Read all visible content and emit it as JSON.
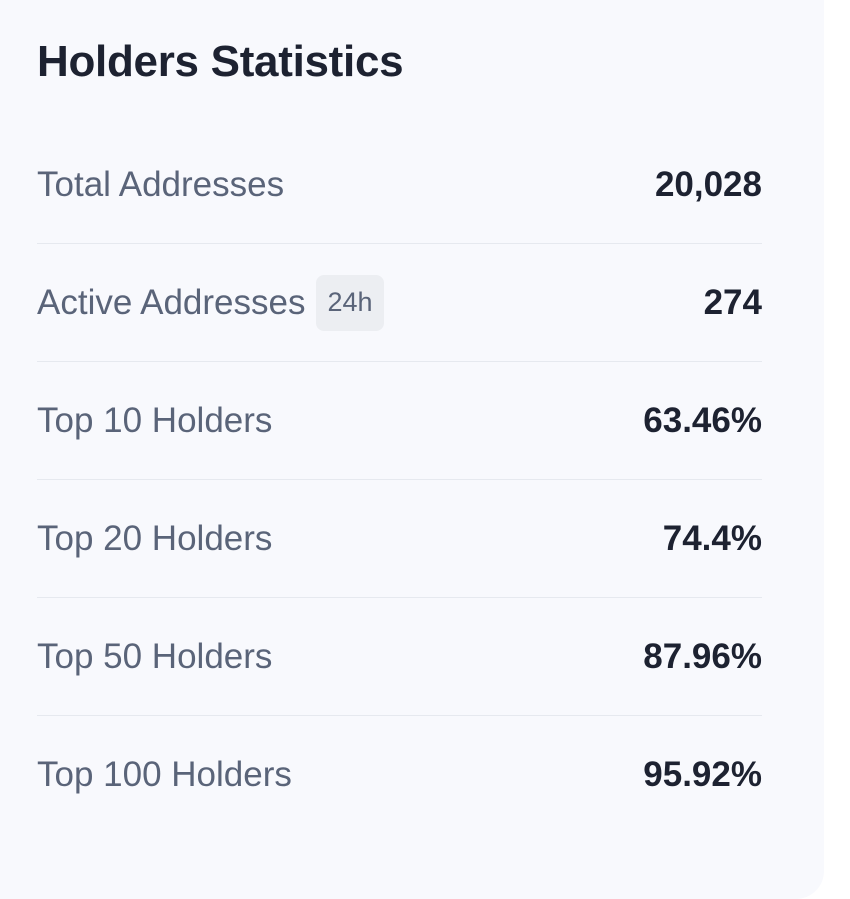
{
  "card": {
    "title": "Holders Statistics",
    "rows": [
      {
        "label": "Total Addresses",
        "value": "20,028"
      },
      {
        "label": "Active Addresses",
        "badge": "24h",
        "value": "274"
      },
      {
        "label": "Top 10 Holders",
        "value": "63.46%"
      },
      {
        "label": "Top 20 Holders",
        "value": "74.4%"
      },
      {
        "label": "Top 50 Holders",
        "value": "87.96%"
      },
      {
        "label": "Top 100 Holders",
        "value": "95.92%"
      }
    ]
  },
  "colors": {
    "card_background": "#f8f9fd",
    "title_text": "#1d2231",
    "label_text": "#5a6479",
    "value_text": "#1d2231",
    "divider": "#e6e9ef",
    "badge_background": "#eceef2"
  }
}
